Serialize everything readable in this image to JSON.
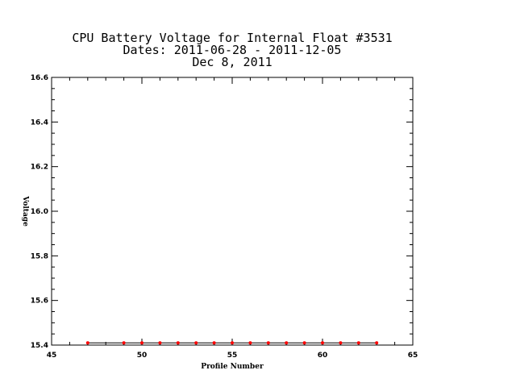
{
  "chart_data": {
    "type": "line",
    "title_lines": [
      "CPU Battery Voltage for Internal Float #3531",
      "Dates:  2011-06-28 -  2011-12-05",
      "Dec  8, 2011"
    ],
    "xlabel": "Profile Number",
    "ylabel": "Voltage",
    "xlim": [
      45,
      65
    ],
    "ylim": [
      15.4,
      16.6
    ],
    "x_ticks": [
      45,
      50,
      55,
      60,
      65
    ],
    "x_tick_labels": [
      "45",
      "50",
      "55",
      "60",
      "65"
    ],
    "y_ticks": [
      15.4,
      15.6,
      15.8,
      16.0,
      16.2,
      16.4,
      16.6
    ],
    "y_tick_labels": [
      "15.4",
      "15.6",
      "15.8",
      "16.0",
      "16.2",
      "16.4",
      "16.6"
    ],
    "grid": false,
    "series": [
      {
        "line_color": "#000000",
        "marker_color": "#ff0000",
        "x": [
          47,
          49,
          50,
          51,
          52,
          53,
          54,
          55,
          56,
          57,
          58,
          59,
          60,
          61,
          62,
          63
        ],
        "y": [
          15.41,
          15.41,
          15.41,
          15.41,
          15.41,
          15.41,
          15.41,
          15.41,
          15.41,
          15.41,
          15.41,
          15.41,
          15.41,
          15.41,
          15.41,
          15.41
        ]
      }
    ]
  }
}
